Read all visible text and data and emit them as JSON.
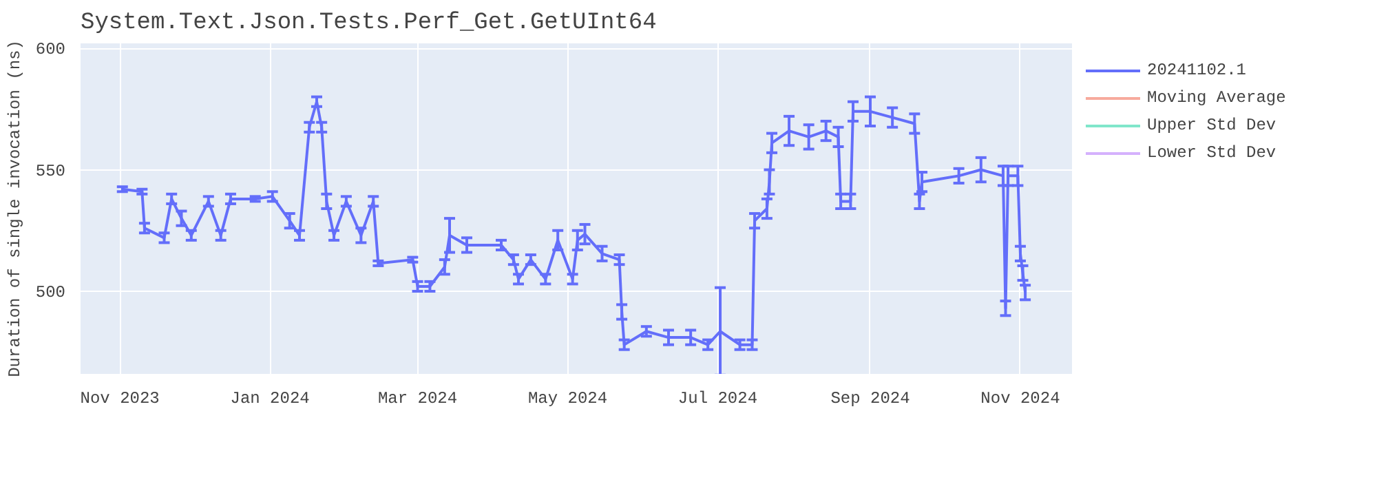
{
  "chart_data": {
    "type": "line",
    "title": "System.Text.Json.Tests.Perf_Get.GetUInt64",
    "ylabel": "Duration of single invocation (ns)",
    "xlim": [
      "2023-10-16",
      "2024-11-22"
    ],
    "ylim": [
      466,
      602
    ],
    "xticks": [
      {
        "value": "2023-11-01",
        "label": "Nov 2023"
      },
      {
        "value": "2024-01-01",
        "label": "Jan 2024"
      },
      {
        "value": "2024-03-01",
        "label": "Mar 2024"
      },
      {
        "value": "2024-05-01",
        "label": "May 2024"
      },
      {
        "value": "2024-07-01",
        "label": "Jul 2024"
      },
      {
        "value": "2024-09-01",
        "label": "Sep 2024"
      },
      {
        "value": "2024-11-01",
        "label": "Nov 2024"
      }
    ],
    "yticks": [
      500,
      550,
      600
    ],
    "grid": true,
    "legend": "top right",
    "marker": "none",
    "line_style": "solid",
    "series": [
      {
        "name": "20241102.1",
        "color": "#636efa",
        "x": [
          "2023-11-02",
          "2023-11-10",
          "2023-11-11",
          "2023-11-19",
          "2023-11-22",
          "2023-11-26",
          "2023-11-30",
          "2023-12-07",
          "2023-12-12",
          "2023-12-16",
          "2023-12-26",
          "2024-01-02",
          "2024-01-09",
          "2024-01-13",
          "2024-01-17",
          "2024-01-20",
          "2024-01-22",
          "2024-01-24",
          "2024-01-27",
          "2024-02-01",
          "2024-02-07",
          "2024-02-12",
          "2024-02-14",
          "2024-02-28",
          "2024-03-01",
          "2024-03-06",
          "2024-03-12",
          "2024-03-14",
          "2024-03-21",
          "2024-04-04",
          "2024-04-09",
          "2024-04-11",
          "2024-04-16",
          "2024-04-22",
          "2024-04-27",
          "2024-05-03",
          "2024-05-05",
          "2024-05-08",
          "2024-05-15",
          "2024-05-22",
          "2024-05-23",
          "2024-05-24",
          "2024-06-02",
          "2024-06-11",
          "2024-06-20",
          "2024-06-27",
          "2024-07-02",
          "2024-07-10",
          "2024-07-15",
          "2024-07-16",
          "2024-07-21",
          "2024-07-22",
          "2024-07-23",
          "2024-07-30",
          "2024-08-07",
          "2024-08-14",
          "2024-08-19",
          "2024-08-20",
          "2024-08-24",
          "2024-08-25",
          "2024-09-01",
          "2024-09-10",
          "2024-09-19",
          "2024-09-21",
          "2024-09-22",
          "2024-10-07",
          "2024-10-16",
          "2024-10-25",
          "2024-10-26",
          "2024-10-27",
          "2024-10-31",
          "2024-11-01",
          "2024-11-02",
          "2024-11-03"
        ],
        "values": [
          542,
          541,
          526,
          522,
          538,
          530,
          523,
          537,
          523,
          538,
          538,
          539,
          529,
          523,
          567.5,
          578,
          567.5,
          537,
          523,
          537,
          523,
          537,
          511.5,
          513,
          502,
          502,
          510,
          523,
          519,
          519,
          513,
          505,
          513,
          505,
          521,
          505,
          521,
          523.5,
          515.5,
          513,
          491.5,
          478,
          483.5,
          481,
          481,
          478,
          483.5,
          478,
          478,
          529,
          534,
          545,
          561,
          566,
          563.5,
          566,
          563.5,
          537,
          537,
          574,
          574,
          571.5,
          569,
          537,
          545,
          547.5,
          550,
          547.5,
          493,
          547.5,
          547.5,
          515.5,
          507.5,
          499.5
        ],
        "errors": [
          1,
          1,
          2,
          2,
          2,
          3,
          2,
          2,
          2,
          2,
          1,
          2,
          3,
          2,
          2,
          2,
          2,
          3,
          2,
          2,
          3,
          2,
          1,
          1,
          2,
          2,
          3,
          7,
          3,
          2,
          2,
          2,
          2,
          2,
          4,
          2,
          4,
          4,
          3,
          2,
          3,
          2,
          2,
          3,
          3,
          2,
          18,
          2,
          2,
          3,
          4,
          5,
          4,
          6,
          5,
          4,
          4,
          3,
          3,
          4,
          6,
          4,
          4,
          3,
          4,
          3,
          5,
          4,
          3,
          4,
          4,
          3,
          3,
          3
        ]
      },
      {
        "name": "Moving Average",
        "color": "#f7aa9d"
      },
      {
        "name": "Upper Std Dev",
        "color": "#80e6cb"
      },
      {
        "name": "Lower Std Dev",
        "color": "#d5b1fd"
      }
    ]
  }
}
